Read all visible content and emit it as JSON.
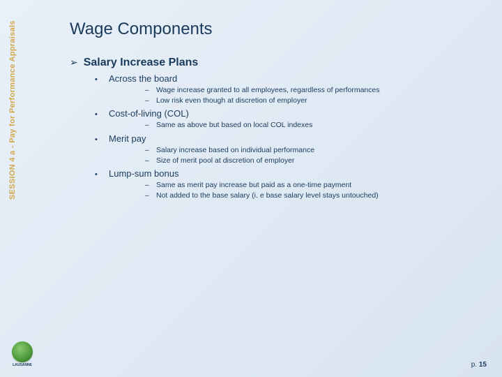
{
  "side_label": "SESSION 4 a - Pay for Performance Appraisals",
  "logo_text": "LAUSANNE",
  "title": "Wage Components",
  "section_heading": "Salary Increase Plans",
  "items": [
    {
      "label": "Across the board",
      "subs": [
        "Wage increase granted to all employees, regardless of performances",
        "Low risk even though at discretion of employer"
      ]
    },
    {
      "label": "Cost-of-living (COL)",
      "subs": [
        "Same as above but based on local COL indexes"
      ]
    },
    {
      "label": "Merit pay",
      "subs": [
        "Salary increase based on individual performance",
        "Size of merit pool at discretion of employer"
      ]
    },
    {
      "label": "Lump-sum bonus",
      "subs": [
        "Same as merit pay increase but paid as a one-time payment",
        "Not added to the base salary (i. e base salary level stays untouched)"
      ]
    }
  ],
  "page_prefix": "p. ",
  "page_number": "15",
  "colors": {
    "text": "#1a3a5c",
    "side_label": "#d4a84c",
    "bg_start": "#e8f0f8",
    "bg_end": "#d8e4f0"
  }
}
